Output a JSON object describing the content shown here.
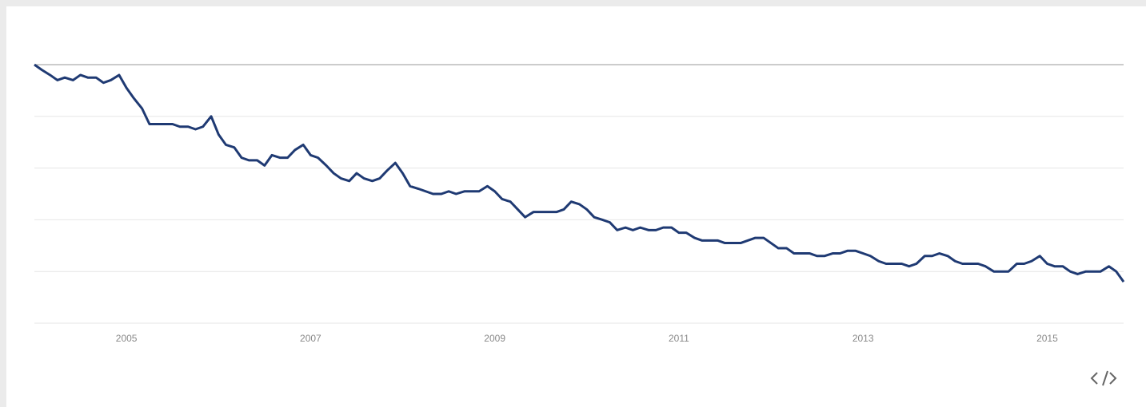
{
  "chart_data": {
    "type": "line",
    "x": [
      2004,
      2004.08,
      2004.17,
      2004.25,
      2004.33,
      2004.42,
      2004.5,
      2004.58,
      2004.67,
      2004.75,
      2004.83,
      2004.92,
      2005,
      2005.08,
      2005.17,
      2005.25,
      2005.33,
      2005.42,
      2005.5,
      2005.58,
      2005.67,
      2005.75,
      2005.83,
      2005.92,
      2006,
      2006.08,
      2006.17,
      2006.25,
      2006.33,
      2006.42,
      2006.5,
      2006.58,
      2006.67,
      2006.75,
      2006.83,
      2006.92,
      2007,
      2007.08,
      2007.17,
      2007.25,
      2007.33,
      2007.42,
      2007.5,
      2007.58,
      2007.67,
      2007.75,
      2007.83,
      2007.92,
      2008,
      2008.08,
      2008.17,
      2008.25,
      2008.33,
      2008.42,
      2008.5,
      2008.58,
      2008.67,
      2008.75,
      2008.83,
      2008.92,
      2009,
      2009.08,
      2009.17,
      2009.25,
      2009.33,
      2009.42,
      2009.5,
      2009.58,
      2009.67,
      2009.75,
      2009.83,
      2009.92,
      2010,
      2010.08,
      2010.17,
      2010.25,
      2010.33,
      2010.42,
      2010.5,
      2010.58,
      2010.67,
      2010.75,
      2010.83,
      2010.92,
      2011,
      2011.08,
      2011.17,
      2011.25,
      2011.33,
      2011.42,
      2011.5,
      2011.58,
      2011.67,
      2011.75,
      2011.83,
      2011.92,
      2012,
      2012.08,
      2012.17,
      2012.25,
      2012.33,
      2012.42,
      2012.5,
      2012.58,
      2012.67,
      2012.75,
      2012.83,
      2012.92,
      2013,
      2013.08,
      2013.17,
      2013.25,
      2013.33,
      2013.42,
      2013.5,
      2013.58,
      2013.67,
      2013.75,
      2013.83,
      2013.92,
      2014,
      2014.08,
      2014.17,
      2014.25,
      2014.33,
      2014.42,
      2014.5,
      2014.58,
      2014.67,
      2014.75,
      2014.83,
      2014.92,
      2015,
      2015.08,
      2015.17,
      2015.25,
      2015.33,
      2015.42,
      2015.5,
      2015.58,
      2015.67,
      2015.75,
      2015.83
    ],
    "series": [
      {
        "color": "#1f3a73",
        "values": [
          100,
          98,
          96,
          94,
          95,
          94,
          96,
          95,
          95,
          93,
          94,
          96,
          91,
          87,
          83,
          77,
          77,
          77,
          77,
          76,
          76,
          75,
          76,
          80,
          73,
          69,
          68,
          64,
          63,
          63,
          61,
          65,
          64,
          64,
          67,
          69,
          65,
          64,
          61,
          58,
          56,
          55,
          58,
          56,
          55,
          56,
          59,
          62,
          58,
          53,
          52,
          51,
          50,
          50,
          51,
          50,
          51,
          51,
          51,
          53,
          51,
          48,
          47,
          44,
          41,
          43,
          43,
          43,
          43,
          44,
          47,
          46,
          44,
          41,
          40,
          39,
          36,
          37,
          36,
          37,
          36,
          36,
          37,
          37,
          35,
          35,
          33,
          32,
          32,
          32,
          31,
          31,
          31,
          32,
          33,
          33,
          31,
          29,
          29,
          27,
          27,
          27,
          26,
          26,
          27,
          27,
          28,
          28,
          27,
          26,
          24,
          23,
          23,
          23,
          22,
          23,
          26,
          26,
          27,
          26,
          24,
          23,
          23,
          23,
          22,
          20,
          20,
          20,
          23,
          23,
          24,
          26,
          23,
          22,
          22,
          20,
          19,
          20,
          20,
          20,
          22,
          20,
          16
        ]
      }
    ],
    "xlim": [
      2004,
      2015.83
    ],
    "xticks": [
      2005,
      2007,
      2009,
      2011,
      2013,
      2015
    ],
    "ylim": [
      0,
      100
    ],
    "yticks": [
      0,
      20,
      40,
      60,
      80,
      100
    ],
    "grid": true
  }
}
